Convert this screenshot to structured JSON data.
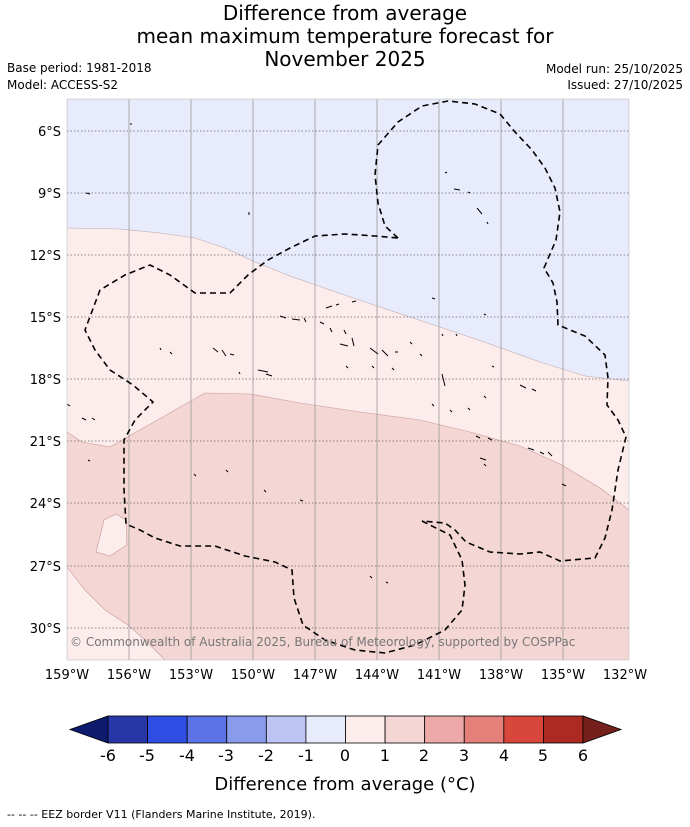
{
  "header": {
    "title_line1": "Difference from average",
    "title_line2": "mean maximum temperature forecast for",
    "title_line3": "November 2025",
    "base_period": "Base period: 1981-2018",
    "model": "Model: ACCESS-S2",
    "model_run": "Model run: 25/10/2025",
    "issued": "Issued: 27/10/2025"
  },
  "map": {
    "lon_labels": [
      "159°W",
      "156°W",
      "153°W",
      "150°W",
      "147°W",
      "144°W",
      "141°W",
      "138°W",
      "135°W",
      "132°W"
    ],
    "lat_labels": [
      "6°S",
      "9°S",
      "12°S",
      "15°S",
      "18°S",
      "21°S",
      "24°S",
      "27°S",
      "30°S"
    ],
    "copyright": "© Commonwealth of Australia 2025, Bureau of Meteorology, supported by COSPPac",
    "colors": {
      "anom_-1_0": "#e8ebfb",
      "anom_0_1": "#fceceb",
      "anom_1_2": "#f4d6d5"
    }
  },
  "colorbar": {
    "ticks": [
      "-6",
      "-5",
      "-4",
      "-3",
      "-2",
      "-1",
      "0",
      "1",
      "2",
      "3",
      "4",
      "5",
      "6"
    ],
    "colors": [
      "#0d1a6e",
      "#2837a8",
      "#2e4ee4",
      "#5b73e6",
      "#8a9bee",
      "#bec5f5",
      "#e8ebfb",
      "#fceceb",
      "#f4d6d5",
      "#eda9a7",
      "#e48079",
      "#d9473c",
      "#ab2a22",
      "#75201d"
    ],
    "title": "Difference from average (°C)"
  },
  "footer": {
    "legend": "--  --  -- EEZ border V11 (Flanders Marine Institute, 2019)."
  }
}
